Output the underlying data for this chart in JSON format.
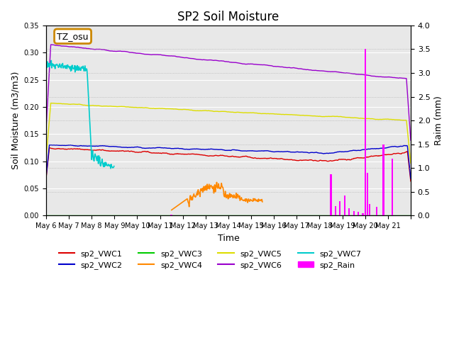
{
  "title": "SP2 Soil Moisture",
  "xlabel": "Time",
  "ylabel_left": "Soil Moisture (m3/m3)",
  "ylabel_right": "Raim (mm)",
  "ylim_left": [
    0,
    0.35
  ],
  "ylim_right": [
    0,
    4.0
  ],
  "n_days": 16,
  "xtick_positions": [
    0,
    1,
    2,
    3,
    4,
    5,
    6,
    7,
    8,
    9,
    10,
    11,
    12,
    13,
    14,
    15,
    16
  ],
  "xtick_labels": [
    "May 6",
    "May 7",
    "May 8",
    "May 9",
    "May 10",
    "May 11",
    "May 12",
    "May 13",
    "May 14",
    "May 15",
    "May 16",
    "May 17",
    "May 18",
    "May 19",
    "May 20",
    "May 21",
    ""
  ],
  "annotation_text": "TZ_osu",
  "annotation_color": "#cc8800",
  "background_color": "#e8e8e8",
  "colors": {
    "sp2_VWC1": "#dd0000",
    "sp2_VWC2": "#0000cc",
    "sp2_VWC3": "#00cc00",
    "sp2_VWC4": "#ff8800",
    "sp2_VWC5": "#dddd00",
    "sp2_VWC6": "#9900cc",
    "sp2_VWC7": "#00cccc",
    "sp2_Rain": "#ff00ff"
  }
}
